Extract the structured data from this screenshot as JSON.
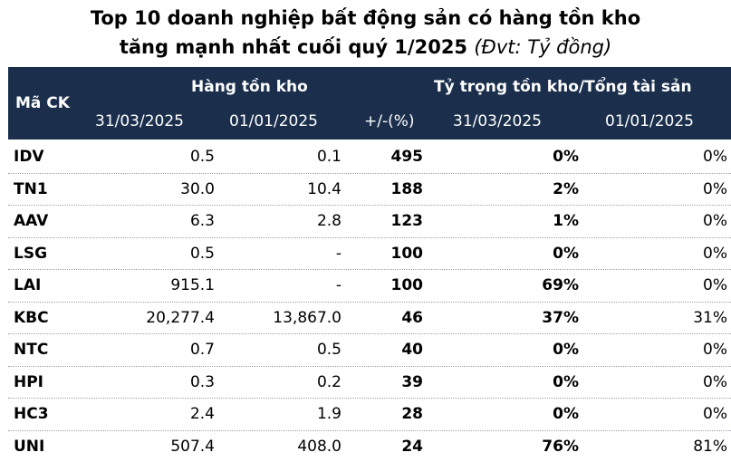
{
  "title": {
    "line1": "Top 10 doanh nghiệp bất động sản có hàng tồn kho",
    "line2_main": "tăng mạnh nhất cuối quý 1/2025",
    "line2_unit": "(Đvt: Tỷ đồng)"
  },
  "header": {
    "ticker": "Mã CK",
    "inventory_group": "Hàng tồn kho",
    "ratio_group": "Tỷ trọng tồn kho/Tổng tài sản",
    "inv_date1": "31/03/2025",
    "inv_date2": "01/01/2025",
    "change": "+/-(%)",
    "ratio_date1": "31/03/2025",
    "ratio_date2": "01/01/2025"
  },
  "rows": [
    {
      "ticker": "IDV",
      "inv_q1": "0.5",
      "inv_start": "0.1",
      "change": "495",
      "ratio_q1": "0%",
      "ratio_start": "0%"
    },
    {
      "ticker": "TN1",
      "inv_q1": "30.0",
      "inv_start": "10.4",
      "change": "188",
      "ratio_q1": "2%",
      "ratio_start": "0%"
    },
    {
      "ticker": "AAV",
      "inv_q1": "6.3",
      "inv_start": "2.8",
      "change": "123",
      "ratio_q1": "1%",
      "ratio_start": "0%"
    },
    {
      "ticker": "LSG",
      "inv_q1": "0.5",
      "inv_start": "-",
      "change": "100",
      "ratio_q1": "0%",
      "ratio_start": "0%"
    },
    {
      "ticker": "LAI",
      "inv_q1": "915.1",
      "inv_start": "-",
      "change": "100",
      "ratio_q1": "69%",
      "ratio_start": "0%"
    },
    {
      "ticker": "KBC",
      "inv_q1": "20,277.4",
      "inv_start": "13,867.0",
      "change": "46",
      "ratio_q1": "37%",
      "ratio_start": "31%"
    },
    {
      "ticker": "NTC",
      "inv_q1": "0.7",
      "inv_start": "0.5",
      "change": "40",
      "ratio_q1": "0%",
      "ratio_start": "0%"
    },
    {
      "ticker": "HPI",
      "inv_q1": "0.3",
      "inv_start": "0.2",
      "change": "39",
      "ratio_q1": "0%",
      "ratio_start": "0%"
    },
    {
      "ticker": "HC3",
      "inv_q1": "2.4",
      "inv_start": "1.9",
      "change": "28",
      "ratio_q1": "0%",
      "ratio_start": "0%"
    },
    {
      "ticker": "UNI",
      "inv_q1": "507.4",
      "inv_start": "408.0",
      "change": "24",
      "ratio_q1": "76%",
      "ratio_start": "81%"
    }
  ],
  "colors": {
    "header_bg": "#1b2f4d",
    "header_text": "#ffffff",
    "row_divider": "#9aa3ae"
  }
}
